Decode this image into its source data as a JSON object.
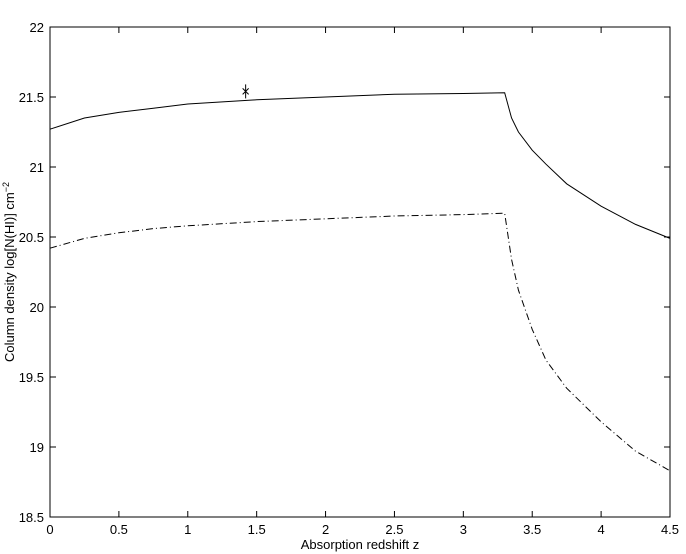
{
  "chart_data": {
    "type": "line",
    "xlabel": "Absorption redshift z",
    "ylabel": {
      "text": "Column density log[N(HI)] cm",
      "superscript": "−2"
    },
    "x": [
      0,
      0.25,
      0.5,
      0.75,
      1,
      1.5,
      2,
      2.5,
      3,
      3.3,
      3.35,
      3.4,
      3.5,
      3.6,
      3.75,
      4,
      4.25,
      4.5
    ],
    "series": [
      {
        "color": "#000000",
        "dash": "solid",
        "values": [
          21.27,
          21.35,
          21.39,
          21.42,
          21.45,
          21.48,
          21.5,
          21.52,
          21.525,
          21.53,
          21.35,
          21.25,
          21.12,
          21.02,
          20.88,
          20.72,
          20.59,
          20.49
        ]
      },
      {
        "color": "#000000",
        "dash": "dashdot",
        "values": [
          20.42,
          20.49,
          20.53,
          20.56,
          20.58,
          20.61,
          20.63,
          20.65,
          20.66,
          20.67,
          20.34,
          20.12,
          19.84,
          19.62,
          19.42,
          19.18,
          18.97,
          18.83
        ]
      }
    ],
    "points": {
      "color": "#000000",
      "x": [
        1.42
      ],
      "values": [
        21.54
      ],
      "errors": [
        0.05
      ]
    },
    "xlim": [
      0,
      4.5
    ],
    "ylim": [
      18.5,
      22
    ],
    "xticks": [
      0,
      0.5,
      1,
      1.5,
      2,
      2.5,
      3,
      3.5,
      4,
      4.5
    ],
    "yticks": [
      18.5,
      19,
      19.5,
      20,
      20.5,
      21,
      21.5,
      22
    ]
  }
}
